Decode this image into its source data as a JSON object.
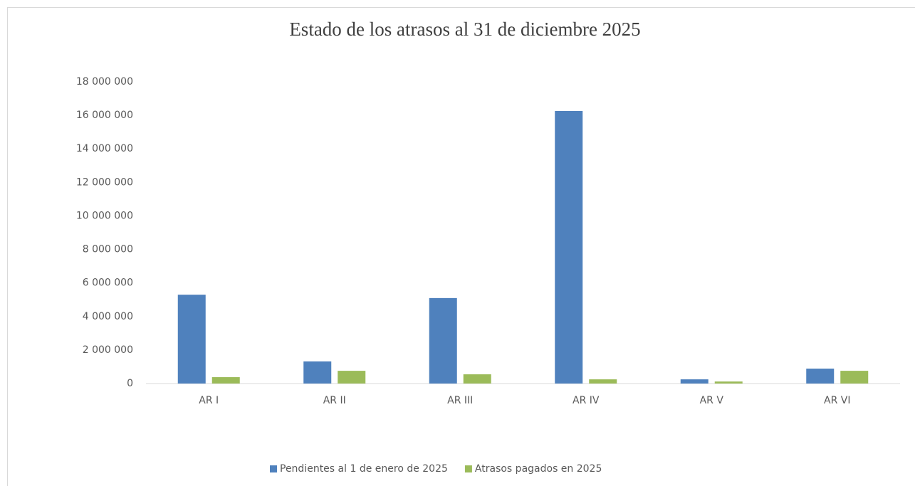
{
  "chart_data": {
    "type": "bar",
    "title": "Estado de los atrasos al 31 de diciembre 2025",
    "categories": [
      "AR I",
      "AR II",
      "AR III",
      "AR IV",
      "AR V",
      "AR VI"
    ],
    "series": [
      {
        "name": "Pendientes al 1 de enero de 2025",
        "color": "#4f81bd",
        "values": [
          5300000,
          1320000,
          5100000,
          16260000,
          250000,
          890000
        ]
      },
      {
        "name": "Atrasos pagados en 2025",
        "color": "#9bbb59",
        "values": [
          380000,
          760000,
          550000,
          250000,
          120000,
          760000
        ]
      }
    ],
    "ylim": [
      0,
      18000000
    ],
    "yticks": [
      0,
      {
        "value": 2000000,
        "label": "2 000 000"
      },
      {
        "value": 4000000,
        "label": "4 000 000"
      },
      {
        "value": 6000000,
        "label": "6 000 000"
      },
      {
        "value": 8000000,
        "label": "8 000 000"
      },
      {
        "value": 10000000,
        "label": "10 000 000"
      },
      {
        "value": 12000000,
        "label": "12 000 000"
      },
      {
        "value": 14000000,
        "label": "14 000 000"
      },
      {
        "value": 16000000,
        "label": "16 000 000"
      },
      {
        "value": 18000000,
        "label": "18 000 000"
      }
    ],
    "grid": false,
    "legend": "bottom"
  }
}
